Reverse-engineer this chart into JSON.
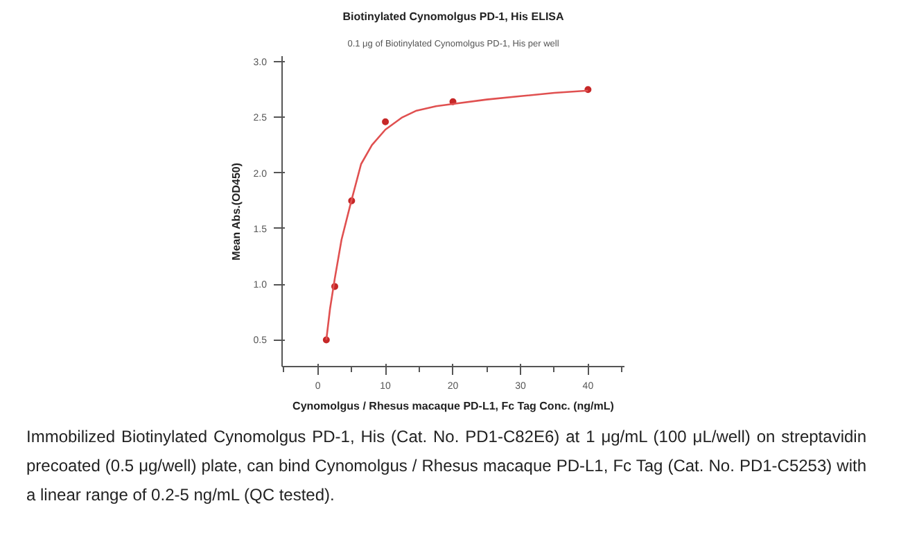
{
  "chart_data": {
    "type": "scatter",
    "title": "Biotinylated Cynomolgus PD-1, His ELISA",
    "subtitle": "0.1 μg of Biotinylated Cynomolgus PD-1, His per well",
    "xlabel": "Cynomolgus / Rhesus macaque PD-L1, Fc Tag Conc. (ng/mL)",
    "ylabel": "Mean Abs.(OD450)",
    "series": [
      {
        "color": "#c62828",
        "x": [
          1.25,
          2.5,
          5,
          10,
          20,
          40
        ],
        "values": [
          0.5,
          0.98,
          1.75,
          2.46,
          2.64,
          2.75
        ]
      },
      {
        "type": "line",
        "marker": "none",
        "color": "#e05050",
        "x": [
          1.25,
          1.8,
          2.5,
          3.5,
          5,
          6.4,
          8,
          10,
          12.5,
          14.6,
          17.5,
          20,
          25,
          30,
          35,
          40
        ],
        "values": [
          0.5,
          0.78,
          1.05,
          1.4,
          1.76,
          2.08,
          2.25,
          2.39,
          2.5,
          2.56,
          2.6,
          2.62,
          2.66,
          2.69,
          2.72,
          2.74
        ]
      }
    ],
    "xlim": [
      -5.3,
      45.4
    ],
    "ylim": [
      0.26,
      3.05
    ],
    "xticks": [
      0,
      10,
      20,
      30,
      40
    ],
    "yticks": [
      0.5,
      {
        "value": 1,
        "label": "1.0"
      },
      1.5,
      {
        "value": 2,
        "label": "2.0"
      },
      2.5,
      {
        "value": 3,
        "label": "3.0"
      }
    ],
    "marker": "circle",
    "grid": false,
    "annotations": [
      "Immobilized Biotinylated Cynomolgus PD-1, His (Cat. No. PD1-C82E6) at 1 μg/mL (100 μL/well) on streptavidin precoated (0.5 μg/well) plate, can bind Cynomolgus / Rhesus macaque PD-L1, Fc Tag (Cat. No. PD1-C5253) with a linear range of 0.2-5 ng/mL (QC tested)."
    ]
  }
}
